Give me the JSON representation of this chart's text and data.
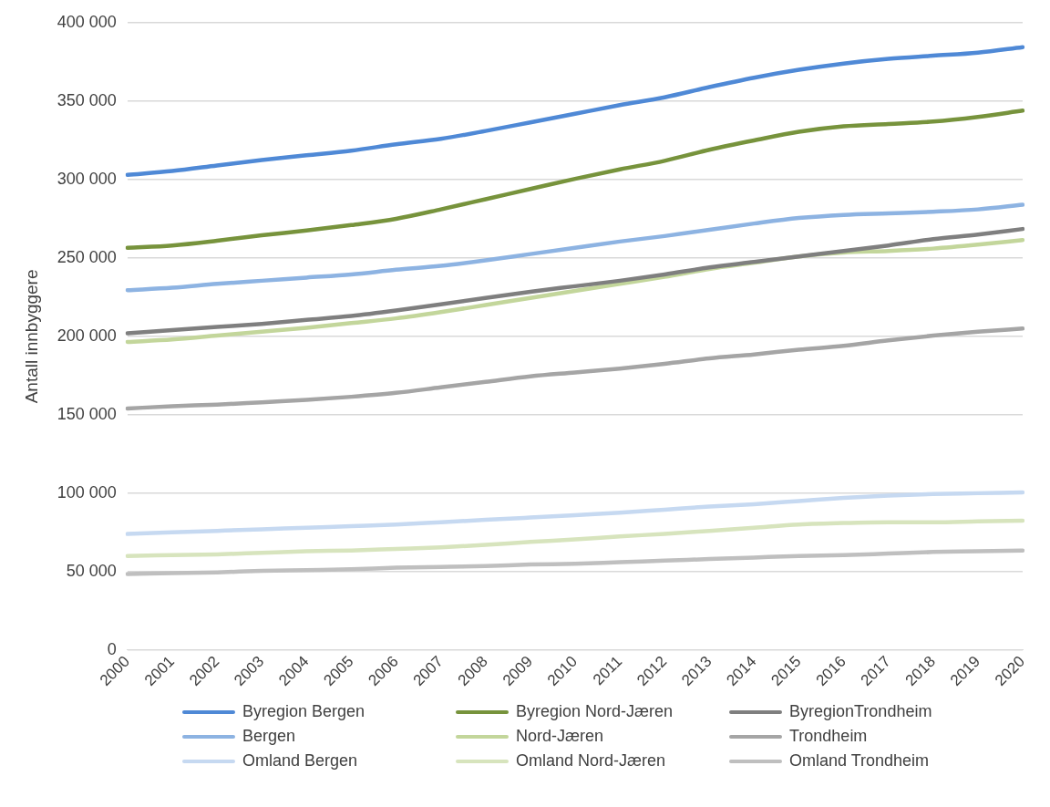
{
  "chart_data": {
    "type": "line",
    "ylabel": "Antall innbyggere",
    "categories": [
      "2000",
      "2001",
      "2002",
      "2003",
      "2004",
      "2005",
      "2006",
      "2007",
      "2008",
      "2009",
      "2010",
      "2011",
      "2012",
      "2013",
      "2014",
      "2015",
      "2016",
      "2017",
      "2018",
      "2019",
      "2020"
    ],
    "ylim": [
      0,
      400000
    ],
    "yticks": [
      {
        "value": 0,
        "label": "0"
      },
      {
        "value": 50000,
        "label": "50 000"
      },
      {
        "value": 100000,
        "label": "100 000"
      },
      {
        "value": 150000,
        "label": "150 000"
      },
      {
        "value": 200000,
        "label": "200 000"
      },
      {
        "value": 250000,
        "label": "250 000"
      },
      {
        "value": 300000,
        "label": "300 000"
      },
      {
        "value": 350000,
        "label": "350 000"
      },
      {
        "value": 400000,
        "label": "400 000"
      }
    ],
    "grid": "y",
    "legend": "bottom",
    "marker": "none",
    "line_style": "solid",
    "series": [
      {
        "name": "Byregion Bergen",
        "color": "#4f89d6",
        "values": [
          303000,
          305500,
          309000,
          312500,
          315500,
          318500,
          322500,
          326000,
          331000,
          336500,
          342000,
          347500,
          352500,
          359000,
          365000,
          370000,
          374000,
          377000,
          379000,
          381000,
          384500
        ]
      },
      {
        "name": "Byregion Nord-Jæren",
        "color": "#77933c",
        "values": [
          256500,
          258000,
          261000,
          264500,
          267500,
          271000,
          275000,
          281000,
          287500,
          294000,
          300500,
          306500,
          312000,
          319000,
          325000,
          330500,
          334000,
          335500,
          337000,
          340000,
          344000
        ]
      },
      {
        "name": "ByregionTrondheim",
        "color": "#7f7f7f",
        "values": [
          202000,
          204000,
          206000,
          208000,
          210500,
          213000,
          216500,
          220500,
          224500,
          228500,
          232000,
          235500,
          239500,
          244000,
          247500,
          251000,
          254500,
          258000,
          262000,
          265000,
          268500
        ]
      },
      {
        "name": "Bergen",
        "color": "#8db3e2",
        "values": [
          229500,
          231000,
          233500,
          235500,
          237500,
          239500,
          242500,
          245000,
          248500,
          252500,
          256500,
          260500,
          264000,
          268000,
          272000,
          275500,
          277500,
          278500,
          279500,
          281000,
          284000
        ]
      },
      {
        "name": "Nord-Jæren",
        "color": "#c3d69b",
        "values": [
          196500,
          198000,
          200500,
          203000,
          205500,
          208500,
          211500,
          215500,
          220000,
          224500,
          229000,
          233500,
          238000,
          243000,
          247000,
          251000,
          253500,
          254500,
          256000,
          258500,
          261500
        ]
      },
      {
        "name": "Trondheim",
        "color": "#a5a5a5",
        "values": [
          154000,
          155500,
          156500,
          158000,
          159500,
          161500,
          164000,
          167500,
          171000,
          174500,
          177000,
          179500,
          182500,
          186000,
          188500,
          191500,
          194000,
          197500,
          200500,
          203000,
          205000
        ]
      },
      {
        "name": "Omland Bergen",
        "color": "#c6d9f1",
        "values": [
          74000,
          75000,
          76000,
          77000,
          78000,
          79000,
          80000,
          81500,
          83000,
          84500,
          86000,
          87500,
          89500,
          91500,
          93000,
          95000,
          97000,
          98500,
          99500,
          100000,
          100500
        ]
      },
      {
        "name": "Omland Nord-Jæren",
        "color": "#d7e4bd",
        "values": [
          60000,
          60500,
          61000,
          62000,
          63000,
          63500,
          64500,
          65500,
          67000,
          69000,
          70500,
          72500,
          74000,
          76000,
          78000,
          80000,
          81000,
          81500,
          81500,
          82000,
          82500
        ]
      },
      {
        "name": "Omland Trondheim",
        "color": "#bfbfbf",
        "values": [
          48500,
          49000,
          49500,
          50500,
          51000,
          51500,
          52500,
          53000,
          53500,
          54500,
          55000,
          56000,
          57000,
          58000,
          59000,
          60000,
          60500,
          61500,
          62500,
          63000,
          63500
        ]
      }
    ]
  }
}
